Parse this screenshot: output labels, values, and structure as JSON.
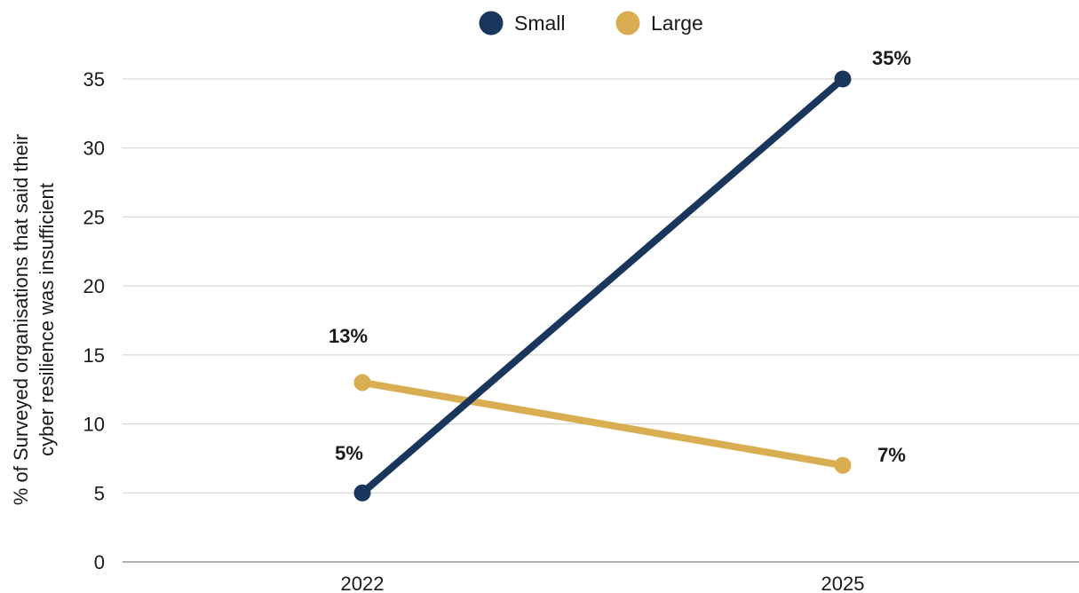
{
  "chart_data": {
    "type": "line",
    "categories": [
      "2022",
      "2025"
    ],
    "series": [
      {
        "name": "Small",
        "values": [
          5,
          35
        ],
        "labels": [
          "5%",
          "35%"
        ],
        "color": "#1b365d"
      },
      {
        "name": "Large",
        "values": [
          13,
          7
        ],
        "labels": [
          "13%",
          "7%"
        ],
        "color": "#d9ae52"
      }
    ],
    "ylabel_lines": [
      "% of Surveyed organisations that said their",
      "cyber resilience was insufficient"
    ],
    "ylim": [
      0,
      35
    ],
    "yticks": [
      0,
      5,
      10,
      15,
      20,
      25,
      30,
      35
    ],
    "grid": true,
    "legend_position": "top-center",
    "colors": {
      "grid": "#d0d0d0",
      "axis": "#808080"
    }
  }
}
